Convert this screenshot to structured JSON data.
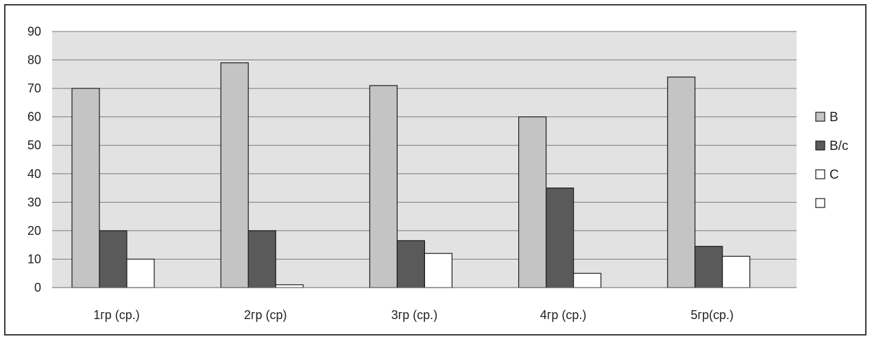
{
  "chart_data": {
    "type": "bar",
    "title": "",
    "xlabel": "",
    "ylabel": "",
    "ylim": [
      0,
      90
    ],
    "yticks": [
      0,
      10,
      20,
      30,
      40,
      50,
      60,
      70,
      80,
      90
    ],
    "grid": true,
    "legend_position": "right",
    "categories": [
      "1гр (ср.)",
      "2гр (ср)",
      "3гр (ср.)",
      "4гр (ср.)",
      "5гр(ср.)"
    ],
    "series": [
      {
        "name": "В",
        "color": "#c4c4c4",
        "values": [
          70,
          79,
          71,
          60,
          74
        ]
      },
      {
        "name": "В/с",
        "color": "#5a5a5a",
        "values": [
          20,
          20,
          16.5,
          35,
          14.5
        ]
      },
      {
        "name": "С",
        "color": "#ffffff",
        "values": [
          10,
          1,
          12,
          5,
          11
        ]
      }
    ],
    "legend_extra_swatch_color": "#ffffff",
    "plot_background": "#e2e2e2",
    "gridline_color": "#7a7a7a"
  }
}
